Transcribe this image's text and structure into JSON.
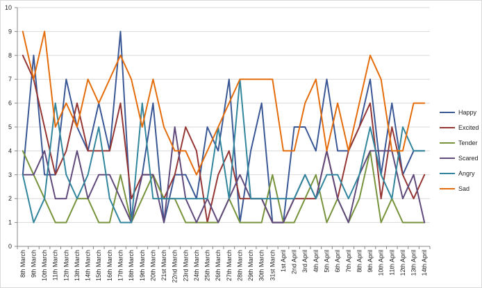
{
  "chart_data": {
    "type": "line",
    "ylim": [
      0,
      10
    ],
    "y_ticks": [
      0,
      1,
      2,
      3,
      4,
      5,
      6,
      7,
      8,
      9,
      10
    ],
    "grid": "horizontal",
    "legend_position": "right",
    "categories": [
      "8th March",
      "9th March",
      "10th March",
      "11th March",
      "12th March",
      "13th March",
      "14th March",
      "15th March",
      "16th March",
      "17th March",
      "18th March",
      "19th March",
      "20th March",
      "21st March",
      "22nd March",
      "23rd March",
      "24th March",
      "25th March",
      "26th March",
      "27th March",
      "28th March",
      "29th March",
      "30th March",
      "31st March",
      "1st April",
      "2nd April",
      "3rd April",
      "4th April",
      "5th April",
      "6th April",
      "7th April",
      "8th April",
      "9th April",
      "10th April",
      "11th April",
      "12th April",
      "13th April",
      "14th April"
    ],
    "series": [
      {
        "name": "Happy",
        "color": "#3a5795",
        "values": [
          3,
          8,
          3,
          3,
          7,
          5,
          4,
          6,
          4,
          9,
          1,
          3,
          6,
          1,
          3,
          3,
          2,
          5,
          4,
          7,
          1,
          4,
          6,
          1,
          1,
          5,
          5,
          4,
          7,
          4,
          4,
          5,
          7,
          3,
          6,
          3,
          4,
          4
        ]
      },
      {
        "name": "Excited",
        "color": "#943634",
        "values": [
          8,
          7,
          5,
          3,
          4,
          6,
          4,
          4,
          4,
          6,
          2,
          3,
          3,
          2,
          3,
          5,
          4,
          1,
          3,
          4,
          2,
          2,
          2,
          1,
          1,
          2,
          2,
          2,
          4,
          2,
          4,
          5,
          6,
          2,
          5,
          3,
          2,
          3
        ]
      },
      {
        "name": "Tender",
        "color": "#77933c",
        "values": [
          4,
          3,
          2,
          1,
          1,
          2,
          2,
          1,
          1,
          3,
          1,
          2,
          3,
          2,
          2,
          1,
          1,
          1,
          1,
          2,
          1,
          1,
          1,
          3,
          1,
          1,
          2,
          3,
          1,
          2,
          1,
          2,
          4,
          1,
          2,
          1,
          1,
          1
        ]
      },
      {
        "name": "Scared",
        "color": "#604a7b",
        "values": [
          3,
          3,
          4,
          2,
          2,
          4,
          2,
          3,
          3,
          2,
          1,
          3,
          3,
          1,
          5,
          2,
          1,
          2,
          1,
          2,
          3,
          2,
          2,
          1,
          1,
          2,
          3,
          2,
          4,
          2,
          1,
          3,
          4,
          4,
          4,
          2,
          3,
          1
        ]
      },
      {
        "name": "Angry",
        "color": "#31859c",
        "values": [
          3,
          1,
          2,
          6,
          3,
          2,
          3,
          5,
          2,
          1,
          1,
          6,
          2,
          2,
          2,
          2,
          2,
          2,
          5,
          2,
          7,
          2,
          2,
          2,
          2,
          2,
          3,
          2,
          3,
          3,
          2,
          3,
          5,
          3,
          2,
          5,
          4,
          4
        ]
      },
      {
        "name": "Sad",
        "color": "#e46c0a",
        "values": [
          9,
          7,
          9,
          5,
          6,
          5,
          7,
          6,
          7,
          8,
          7,
          5,
          7,
          5,
          4,
          4,
          3,
          4,
          5,
          6,
          7,
          7,
          7,
          7,
          4,
          4,
          6,
          7,
          4,
          6,
          4,
          6,
          8,
          7,
          4,
          4,
          6,
          6
        ]
      }
    ]
  }
}
